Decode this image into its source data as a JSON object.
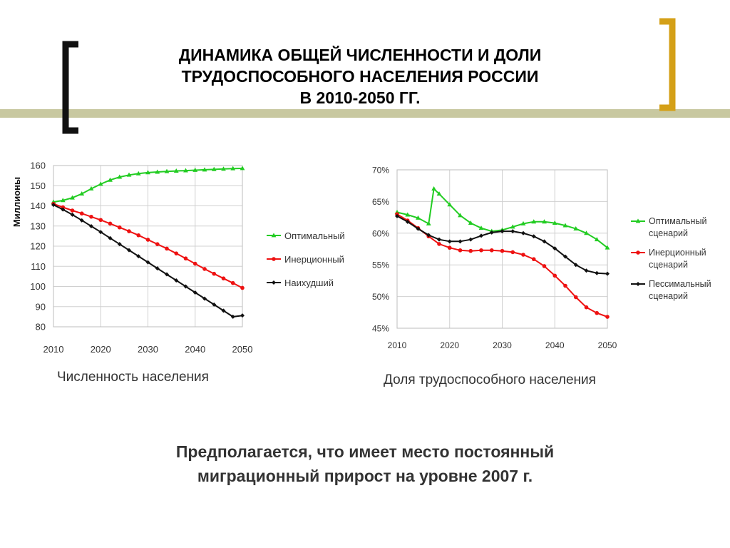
{
  "slide": {
    "title_lines": [
      "ДИНАМИКА ОБЩЕЙ ЧИСЛЕННОСТИ И ДОЛИ",
      "ТРУДОСПОСОБНОГО НАСЕЛЕНИЯ РОССИИ",
      "В 2010-2050 ГГ."
    ],
    "note_lines": [
      "Предполагается, что имеет место постоянный",
      "миграционный прирост на уровне 2007 г."
    ],
    "colors": {
      "accent_bar": "#c8c8a0",
      "bracket_left": "#111111",
      "bracket_right": "#d4a017"
    }
  },
  "chart_data": [
    {
      "type": "line",
      "caption": "Численность населения",
      "ylabel": "Миллионы",
      "xlabel": "",
      "x_ticks": [
        "2010",
        "2020",
        "2030",
        "2040",
        "2050"
      ],
      "y_ticks": [
        "80",
        "90",
        "100",
        "110",
        "120",
        "130",
        "140",
        "150",
        "160"
      ],
      "xlim": [
        2010,
        2050
      ],
      "ylim": [
        80,
        160
      ],
      "grid": true,
      "legend_position": "right",
      "series": [
        {
          "name": "Оптимальный",
          "color": "#22cc22",
          "marker": "triangle",
          "x": [
            2010,
            2012,
            2014,
            2016,
            2018,
            2020,
            2022,
            2024,
            2026,
            2028,
            2030,
            2032,
            2034,
            2036,
            2038,
            2040,
            2042,
            2044,
            2046,
            2048,
            2050
          ],
          "y": [
            141.9,
            142.7,
            144.0,
            146.0,
            148.5,
            150.8,
            152.8,
            154.3,
            155.3,
            156.0,
            156.5,
            156.8,
            157.1,
            157.3,
            157.5,
            157.7,
            157.9,
            158.1,
            158.3,
            158.5,
            158.6
          ]
        },
        {
          "name": "Инерционный",
          "color": "#ee1111",
          "marker": "circle",
          "x": [
            2010,
            2012,
            2014,
            2016,
            2018,
            2020,
            2022,
            2024,
            2026,
            2028,
            2030,
            2032,
            2034,
            2036,
            2038,
            2040,
            2042,
            2044,
            2046,
            2048,
            2050
          ],
          "y": [
            141.0,
            139.3,
            137.7,
            136.2,
            134.6,
            133.0,
            131.2,
            129.3,
            127.4,
            125.4,
            123.2,
            121.0,
            118.8,
            116.4,
            113.9,
            111.3,
            108.7,
            106.3,
            104.0,
            101.7,
            99.3
          ]
        },
        {
          "name": "Наихудший",
          "color": "#111111",
          "marker": "diamond",
          "x": [
            2010,
            2012,
            2014,
            2016,
            2018,
            2020,
            2022,
            2024,
            2026,
            2028,
            2030,
            2032,
            2034,
            2036,
            2038,
            2040,
            2042,
            2044,
            2046,
            2048,
            2050
          ],
          "y": [
            140.5,
            138.2,
            135.6,
            132.8,
            129.9,
            127.0,
            124.0,
            121.0,
            118.0,
            115.0,
            112.0,
            109.0,
            106.0,
            103.0,
            100.0,
            97.0,
            94.0,
            91.0,
            88.0,
            85.0,
            85.6
          ]
        }
      ]
    },
    {
      "type": "line",
      "caption": "Доля трудоспособного населения",
      "xlabel": "",
      "ylabel": "",
      "x_ticks": [
        "2010",
        "2020",
        "2030",
        "2040",
        "2050"
      ],
      "y_ticks": [
        "45%",
        "50%",
        "55%",
        "60%",
        "65%",
        "70%"
      ],
      "xlim": [
        2010,
        2050
      ],
      "ylim": [
        45,
        70
      ],
      "grid": true,
      "legend_position": "right",
      "series": [
        {
          "name": "Оптимальный сценарий",
          "color": "#22cc22",
          "marker": "triangle",
          "x": [
            2010,
            2012,
            2014,
            2016,
            2017,
            2018,
            2020,
            2022,
            2024,
            2026,
            2028,
            2030,
            2032,
            2034,
            2036,
            2038,
            2040,
            2042,
            2044,
            2046,
            2048,
            2050
          ],
          "y": [
            63.3,
            62.9,
            62.4,
            61.5,
            67.0,
            66.2,
            64.5,
            62.8,
            61.6,
            60.8,
            60.3,
            60.5,
            61.0,
            61.5,
            61.8,
            61.8,
            61.6,
            61.2,
            60.7,
            60.0,
            59.0,
            57.7
          ]
        },
        {
          "name": "Инерционный сценарий",
          "color": "#ee1111",
          "marker": "circle",
          "x": [
            2010,
            2012,
            2014,
            2016,
            2018,
            2020,
            2022,
            2024,
            2026,
            2028,
            2030,
            2032,
            2034,
            2036,
            2038,
            2040,
            2042,
            2044,
            2046,
            2048,
            2050
          ],
          "y": [
            63.0,
            62.0,
            60.8,
            59.5,
            58.3,
            57.7,
            57.3,
            57.2,
            57.3,
            57.3,
            57.2,
            57.0,
            56.6,
            55.9,
            54.8,
            53.3,
            51.7,
            49.9,
            48.3,
            47.4,
            46.8
          ]
        },
        {
          "name": "Пессимальный сценарий",
          "color": "#111111",
          "marker": "diamond",
          "x": [
            2010,
            2012,
            2014,
            2016,
            2018,
            2020,
            2022,
            2024,
            2026,
            2028,
            2030,
            2032,
            2034,
            2036,
            2038,
            2040,
            2042,
            2044,
            2046,
            2048,
            2050
          ],
          "y": [
            62.7,
            61.8,
            60.7,
            59.7,
            59.0,
            58.7,
            58.7,
            59.0,
            59.6,
            60.1,
            60.3,
            60.3,
            60.0,
            59.5,
            58.7,
            57.6,
            56.3,
            55.0,
            54.1,
            53.7,
            53.6
          ]
        }
      ]
    }
  ]
}
